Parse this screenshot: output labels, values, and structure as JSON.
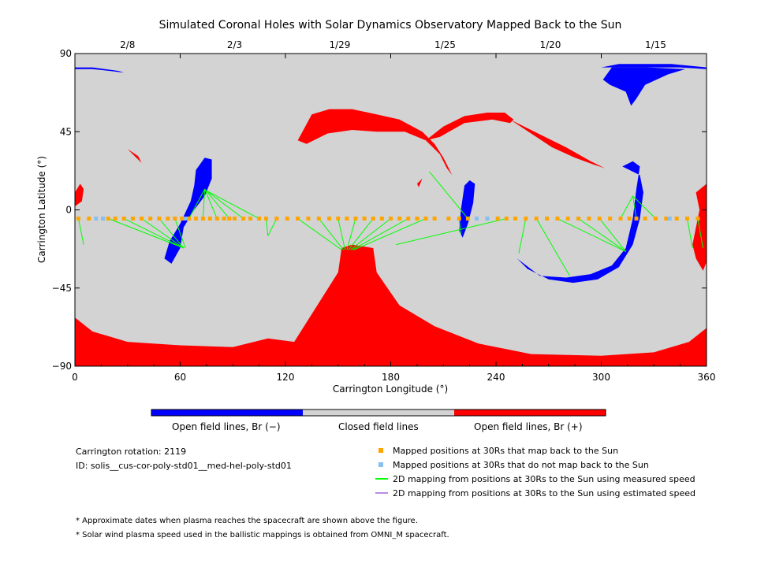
{
  "chart_data": {
    "type": "scatter",
    "title": "Simulated Coronal Holes with Solar Dynamics Observatory Mapped Back to the Sun",
    "xlabel": "Carrington Longitude (°)",
    "ylabel": "Carrington Latitude (°)",
    "xlim": [
      0,
      360
    ],
    "ylim": [
      -90,
      90
    ],
    "x_ticks": [
      0,
      60,
      120,
      180,
      240,
      300,
      360
    ],
    "y_ticks": [
      90,
      45,
      0,
      -45,
      -90
    ],
    "x_tick_labels": [
      "0",
      "60",
      "120",
      "180",
      "240",
      "300",
      "360"
    ],
    "y_tick_labels": [
      "90",
      "45",
      "0",
      "−45",
      "−90"
    ],
    "top_axis_dates": [
      {
        "label": "2/8",
        "lon": 30
      },
      {
        "label": "2/3",
        "lon": 91
      },
      {
        "label": "1/29",
        "lon": 151
      },
      {
        "label": "1/25",
        "lon": 211
      },
      {
        "label": "1/20",
        "lon": 271
      },
      {
        "label": "1/15",
        "lon": 331
      }
    ],
    "colorbar": {
      "segments": [
        {
          "label": "Open field lines, Br (−)",
          "color": "#0000ff"
        },
        {
          "label": "Closed field lines",
          "color": "#d3d3d3"
        },
        {
          "label": "Open field lines, Br (+)",
          "color": "#ff0000"
        }
      ]
    },
    "colors": {
      "closed": "#d3d3d3",
      "open_negative": "#0000ff",
      "open_positive": "#ff0000",
      "mapped_yes": "#ffa500",
      "mapped_no": "#87bfee",
      "measured_line": "#00ff00",
      "estimated_line": "#b98be6"
    },
    "mapped_positions_lat": -5,
    "mapped_positions_back_lon": [
      2,
      8,
      19,
      23,
      28,
      33,
      38,
      43,
      48,
      53,
      57,
      61,
      65,
      69,
      73,
      77,
      81,
      85,
      88,
      91,
      96,
      100,
      105,
      109,
      115,
      121,
      127,
      133,
      139,
      145,
      150,
      155,
      160,
      165,
      170,
      175,
      180,
      185,
      190,
      195,
      200,
      205,
      213,
      219,
      224,
      241,
      246,
      251,
      257,
      263,
      269,
      275,
      281,
      287,
      293,
      299,
      305,
      311,
      316,
      320,
      325,
      331,
      337,
      343,
      349,
      355
    ],
    "mapped_positions_not_lon": [
      12,
      16,
      63,
      229,
      235,
      339
    ],
    "field_line_mappings": [
      {
        "from_lon": 2,
        "to": [
          5,
          -20
        ]
      },
      {
        "from_lon": 19,
        "to": [
          62,
          -22
        ]
      },
      {
        "from_lon": 28,
        "to": [
          62,
          -22
        ]
      },
      {
        "from_lon": 38,
        "to": [
          62,
          -22
        ]
      },
      {
        "from_lon": 48,
        "to": [
          62,
          -22
        ]
      },
      {
        "from_lon": 57,
        "to": [
          63,
          -22
        ]
      },
      {
        "from_lon": 65,
        "to": [
          74,
          12
        ]
      },
      {
        "from_lon": 73,
        "to": [
          74,
          12
        ]
      },
      {
        "from_lon": 81,
        "to": [
          74,
          12
        ]
      },
      {
        "from_lon": 88,
        "to": [
          74,
          12
        ]
      },
      {
        "from_lon": 96,
        "to": [
          75,
          11
        ]
      },
      {
        "from_lon": 105,
        "to": [
          75,
          11
        ]
      },
      {
        "from_lon": 109,
        "to": [
          110,
          -15
        ]
      },
      {
        "from_lon": 115,
        "to": [
          110,
          -15
        ]
      },
      {
        "from_lon": 127,
        "to": [
          152,
          -23
        ]
      },
      {
        "from_lon": 139,
        "to": [
          153,
          -23
        ]
      },
      {
        "from_lon": 150,
        "to": [
          154,
          -23
        ]
      },
      {
        "from_lon": 160,
        "to": [
          155,
          -23
        ]
      },
      {
        "from_lon": 170,
        "to": [
          156,
          -23
        ]
      },
      {
        "from_lon": 180,
        "to": [
          157,
          -23
        ]
      },
      {
        "from_lon": 190,
        "to": [
          158,
          -23
        ]
      },
      {
        "from_lon": 200,
        "to": [
          159,
          -23
        ]
      },
      {
        "from_lon": 224,
        "to": [
          202,
          22
        ]
      },
      {
        "from_lon": 219,
        "to": [
          220,
          -14
        ]
      },
      {
        "from_lon": 246,
        "to": [
          183,
          -20
        ]
      },
      {
        "from_lon": 257,
        "to": [
          253,
          -25
        ]
      },
      {
        "from_lon": 263,
        "to": [
          282,
          -38
        ]
      },
      {
        "from_lon": 275,
        "to": [
          314,
          -24
        ]
      },
      {
        "from_lon": 287,
        "to": [
          314,
          -24
        ]
      },
      {
        "from_lon": 299,
        "to": [
          314,
          -24
        ]
      },
      {
        "from_lon": 311,
        "to": [
          318,
          8
        ]
      },
      {
        "from_lon": 320,
        "to": [
          318,
          8
        ]
      },
      {
        "from_lon": 331,
        "to": [
          318,
          8
        ]
      },
      {
        "from_lon": 349,
        "to": [
          352,
          -22
        ]
      },
      {
        "from_lon": 355,
        "to": [
          358,
          -22
        ]
      }
    ],
    "legend": [
      {
        "label": "Mapped positions at 30Rs that map back to the Sun",
        "kind": "square",
        "color": "#ffa500"
      },
      {
        "label": "Mapped positions at 30Rs that do not map back to the Sun",
        "kind": "square",
        "color": "#87bfee"
      },
      {
        "label": "2D mapping from positions at 30Rs to the Sun using measured speed",
        "kind": "line",
        "color": "#00ff00"
      },
      {
        "label": "2D mapping from positions at 30Rs to the Sun using estimated speed",
        "kind": "line",
        "color": "#b98be6"
      }
    ],
    "info": {
      "rotation": "Carrington rotation: 2119",
      "id": "ID: solis__cus-cor-poly-std01__med-hel-poly-std01"
    },
    "footnotes": [
      "* Approximate dates when plasma reaches the spacecraft are shown above the figure.",
      "* Solar wind plasma speed used in the ballistic mappings is obtained from OMNI_M spacecraft."
    ]
  }
}
